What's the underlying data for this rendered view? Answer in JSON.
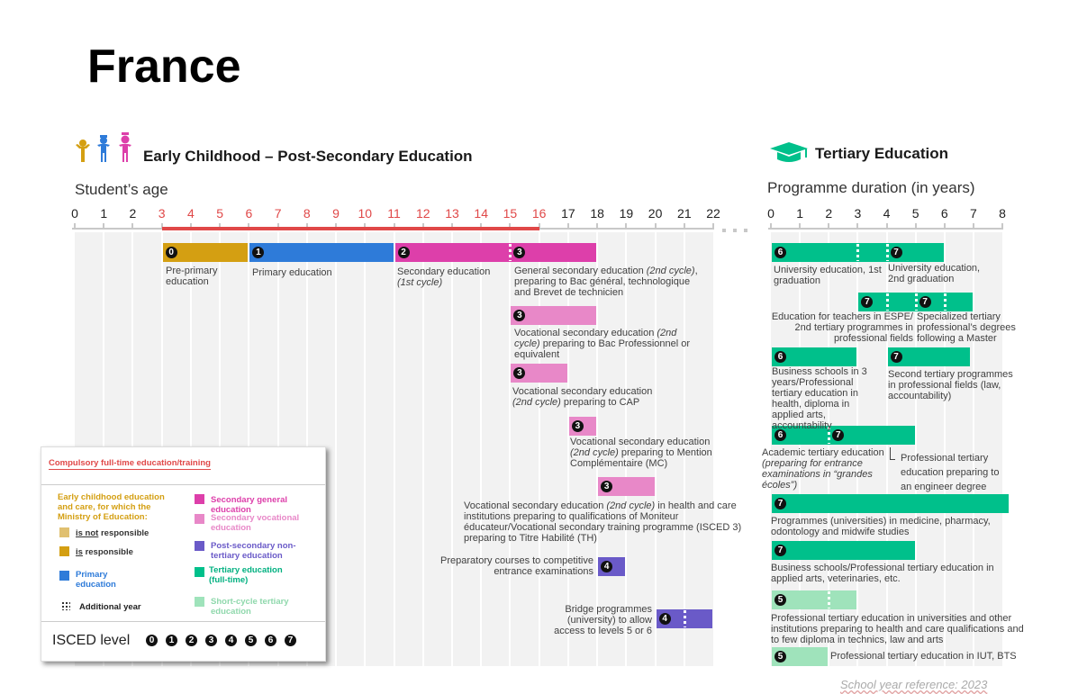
{
  "title": "France",
  "left": {
    "section_title": "Early Childhood – Post-Secondary Education",
    "axis_title": "Student’s age",
    "ticks": [
      0,
      1,
      2,
      3,
      4,
      5,
      6,
      7,
      8,
      9,
      10,
      11,
      12,
      13,
      14,
      15,
      16,
      17,
      18,
      19,
      20,
      21,
      22
    ],
    "compulsory_range": [
      3,
      16
    ],
    "bars": [
      {
        "start": 3,
        "end": 6,
        "color": "#d49f12",
        "badges": [
          {
            "at": 3,
            "level": "0"
          }
        ],
        "dots": []
      },
      {
        "start": 6,
        "end": 11,
        "color": "#2e7bd9",
        "badges": [
          {
            "at": 6,
            "level": "1"
          }
        ],
        "dots": []
      },
      {
        "start": 11,
        "end": 18,
        "color": "#dd3faa",
        "badges": [
          {
            "at": 11,
            "level": "2"
          },
          {
            "at": 15,
            "level": "3"
          }
        ],
        "dots": [
          15
        ]
      },
      {
        "start": 15,
        "end": 18,
        "color": "#e888c8",
        "badges": [
          {
            "at": 15,
            "level": "3"
          }
        ],
        "dots": []
      },
      {
        "start": 15,
        "end": 17,
        "color": "#e888c8",
        "badges": [
          {
            "at": 15,
            "level": "3"
          }
        ],
        "dots": []
      },
      {
        "start": 17,
        "end": 18,
        "color": "#e888c8",
        "badges": [
          {
            "at": 17,
            "level": "3"
          }
        ],
        "dots": []
      },
      {
        "start": 18,
        "end": 20,
        "color": "#e888c8",
        "badges": [
          {
            "at": 18,
            "level": "3"
          }
        ],
        "dots": []
      },
      {
        "start": 18,
        "end": 19,
        "color": "#6a5ac8",
        "badges": [
          {
            "at": 18,
            "level": "4"
          }
        ],
        "dots": []
      },
      {
        "start": 20,
        "end": 22,
        "color": "#6a5ac8",
        "badges": [
          {
            "at": 20,
            "level": "4"
          }
        ],
        "dots": [
          21
        ]
      }
    ],
    "labels": {
      "preprimary": "Pre-primary education",
      "primary": "Primary education",
      "sec1": "Secondary education",
      "sec1_it": "(1st cycle)",
      "gen2_a": "General secondary education ",
      "gen2_it": "(2nd cycle)",
      "gen2_b": ", preparing to Bac général, technologique and Brevet de technicien",
      "voc_bac_a": "Vocational secondary education ",
      "voc_bac_it": "(2nd cycle)",
      "voc_bac_b": " preparing to Bac Professionnel or equivalent",
      "voc_cap_a": "Vocational secondary education ",
      "voc_cap_it": "(2nd cycle)",
      "voc_cap_b": " preparing to CAP",
      "voc_mc_a": "Vocational secondary education ",
      "voc_mc_it": "(2nd cycle)",
      "voc_mc_b": " preparing to Mention Complémentaire (MC)",
      "voc_health_a": "Vocational secondary education ",
      "voc_health_it": "(2nd cycle)",
      "voc_health_b": " in health and care institutions preparing to qualifications of Moniteur éducateur/Vocational secondary training programme (ISCED 3) preparing to Titre Habilité (TH)",
      "prep": "Preparatory courses to competitive entrance examinations",
      "bridge": "Bridge programmes (university) to allow access to levels 5 or 6"
    }
  },
  "right": {
    "section_title": "Tertiary Education",
    "axis_title": "Programme duration (in years)",
    "ticks": [
      0,
      1,
      2,
      3,
      4,
      5,
      6,
      7,
      8
    ],
    "bars": [
      {
        "start": 0,
        "end": 6,
        "color": "#00c08b",
        "badges": [
          {
            "at": 0,
            "level": "6"
          },
          {
            "at": 4,
            "level": "7"
          }
        ],
        "dots": [
          3,
          4
        ]
      },
      {
        "start": 3,
        "end": 7,
        "color": "#00c08b",
        "badges": [
          {
            "at": 3,
            "level": "7"
          },
          {
            "at": 5,
            "level": "7"
          }
        ],
        "dots": [
          4,
          5,
          6
        ]
      },
      {
        "start": 0,
        "end": 3,
        "color": "#00c08b",
        "badges": [
          {
            "at": 0,
            "level": "6"
          }
        ],
        "dots": []
      },
      {
        "start": 4,
        "end": 6.9,
        "color": "#00c08b",
        "badges": [
          {
            "at": 4,
            "level": "7"
          }
        ],
        "dots": []
      },
      {
        "start": 0,
        "end": 5,
        "color": "#00c08b",
        "badges": [
          {
            "at": 0,
            "level": "6"
          },
          {
            "at": 2,
            "level": "7"
          }
        ],
        "dots": [
          2
        ]
      },
      {
        "start": 0,
        "end": 8.25,
        "color": "#00c08b",
        "badges": [
          {
            "at": 0,
            "level": "7"
          }
        ],
        "dots": []
      },
      {
        "start": 0,
        "end": 5,
        "color": "#00c08b",
        "badges": [
          {
            "at": 0,
            "level": "7"
          }
        ],
        "dots": []
      },
      {
        "start": 0,
        "end": 3,
        "color": "#9fe3bb",
        "badges": [
          {
            "at": 0,
            "level": "5"
          }
        ],
        "dots": [
          2
        ]
      },
      {
        "start": 0,
        "end": 2,
        "color": "#9fe3bb",
        "badges": [
          {
            "at": 0,
            "level": "5"
          }
        ],
        "dots": []
      }
    ],
    "labels": {
      "uni1": "University education, 1st graduation",
      "uni2": "University education, 2nd graduation",
      "teachers": "Education for teachers in ESPE/ 2nd tertiary programmes in professional fields",
      "specialized": "Specialized tertiary professional’s degrees following a Master",
      "business3": "Business schools in 3 years/Professional tertiary education in health, diploma in applied arts, accountability",
      "second": "Second tertiary programmes in professional fields (law, accountability)",
      "academic": "Academic tertiary education",
      "academic_it": "(preparing for entrance examinations in “grandes écoles”)",
      "engineer": "Professional tertiary education preparing to an engineer degree",
      "medicine": "Programmes (universities) in medicine, pharmacy, odontology and midwife studies",
      "business": "Business schools/Professional tertiary education in applied arts, veterinaries, etc.",
      "health": "Professional tertiary education in universities and other institutions preparing to health and care qualifications and to few diploma in technics, law and arts",
      "iut": "Professional tertiary education in IUT, BTS"
    }
  },
  "legend": {
    "compulsory": "Compulsory full-time education/training",
    "ecec": "Early childhood education and care, for which the Ministry of Education:",
    "not_u": "is not",
    "not_rest": " responsible",
    "is_u": "is",
    "is_rest": " responsible",
    "primary": "Primary education",
    "additional": "Additional year",
    "sec_gen": "Secondary general education",
    "sec_voc": "Secondary vocational education",
    "post_sec": "Post-secondary non-tertiary education",
    "tertiary": "Tertiary education (full-time)",
    "short": "Short-cycle tertiary education",
    "isced": "ISCED level",
    "levels": [
      "0",
      "1",
      "2",
      "3",
      "4",
      "5",
      "6",
      "7"
    ],
    "colors": {
      "ecec_not": "#e0c070",
      "ecec_is": "#d49f12",
      "primary": "#2e7bd9",
      "sec_gen": "#dd3faa",
      "sec_voc": "#e888c8",
      "post_sec": "#6a5ac8",
      "tertiary": "#00c08b",
      "short": "#9fe3bb",
      "compulsory": "#e04848"
    }
  },
  "footer": "School year reference: 2023"
}
